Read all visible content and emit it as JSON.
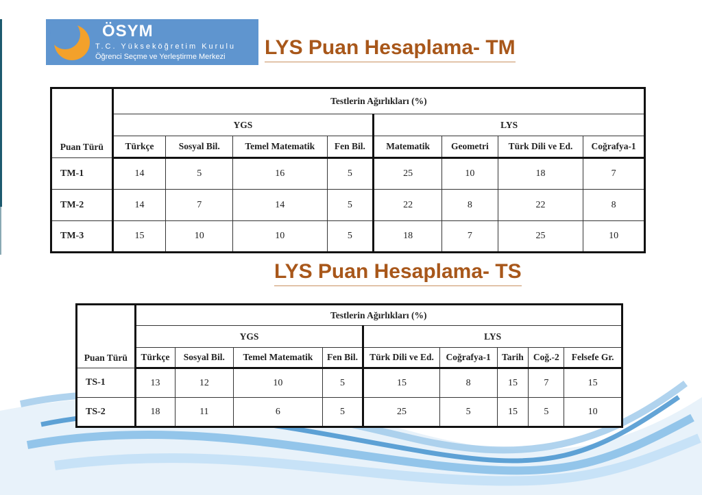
{
  "logo": {
    "name": "ÖSYM",
    "line1": "T.C. Yükseköğretim Kurulu",
    "line2": "Öğrenci Seçme ve Yerleştirme Merkezi"
  },
  "colors": {
    "heading": "#a8571a",
    "logo_bg": "#5f95cf",
    "logo_accent": "#f3a12b",
    "wave": "#2f86c8"
  },
  "tm": {
    "heading": "LYS Puan Hesaplama- TM",
    "caption": "Testlerin Ağırlıkları (%)",
    "group_ygs": "YGS",
    "group_lys": "LYS",
    "columns": [
      "Puan Türü",
      "Türkçe",
      "Sosyal Bil.",
      "Temel Matematik",
      "Fen Bil.",
      "Matematik",
      "Geometri",
      "Türk Dili ve Ed.",
      "Coğrafya-1"
    ],
    "rows": [
      [
        "TM-1",
        "14",
        "5",
        "16",
        "5",
        "25",
        "10",
        "18",
        "7"
      ],
      [
        "TM-2",
        "14",
        "7",
        "14",
        "5",
        "22",
        "8",
        "22",
        "8"
      ],
      [
        "TM-3",
        "15",
        "10",
        "10",
        "5",
        "18",
        "7",
        "25",
        "10"
      ]
    ]
  },
  "ts": {
    "heading": "LYS Puan Hesaplama- TS",
    "caption": "Testlerin Ağırlıkları (%)",
    "group_ygs": "YGS",
    "group_lys": "LYS",
    "columns": [
      "Puan Türü",
      "Türkçe",
      "Sosyal Bil.",
      "Temel Matematik",
      "Fen Bil.",
      "Türk Dili ve Ed.",
      "Coğrafya-1",
      "Tarih",
      "Coğ.-2",
      "Felsefe Gr."
    ],
    "rows": [
      [
        "TS-1",
        "13",
        "12",
        "10",
        "5",
        "15",
        "8",
        "15",
        "7",
        "15"
      ],
      [
        "TS-2",
        "18",
        "11",
        "6",
        "5",
        "25",
        "5",
        "15",
        "5",
        "10"
      ]
    ]
  }
}
